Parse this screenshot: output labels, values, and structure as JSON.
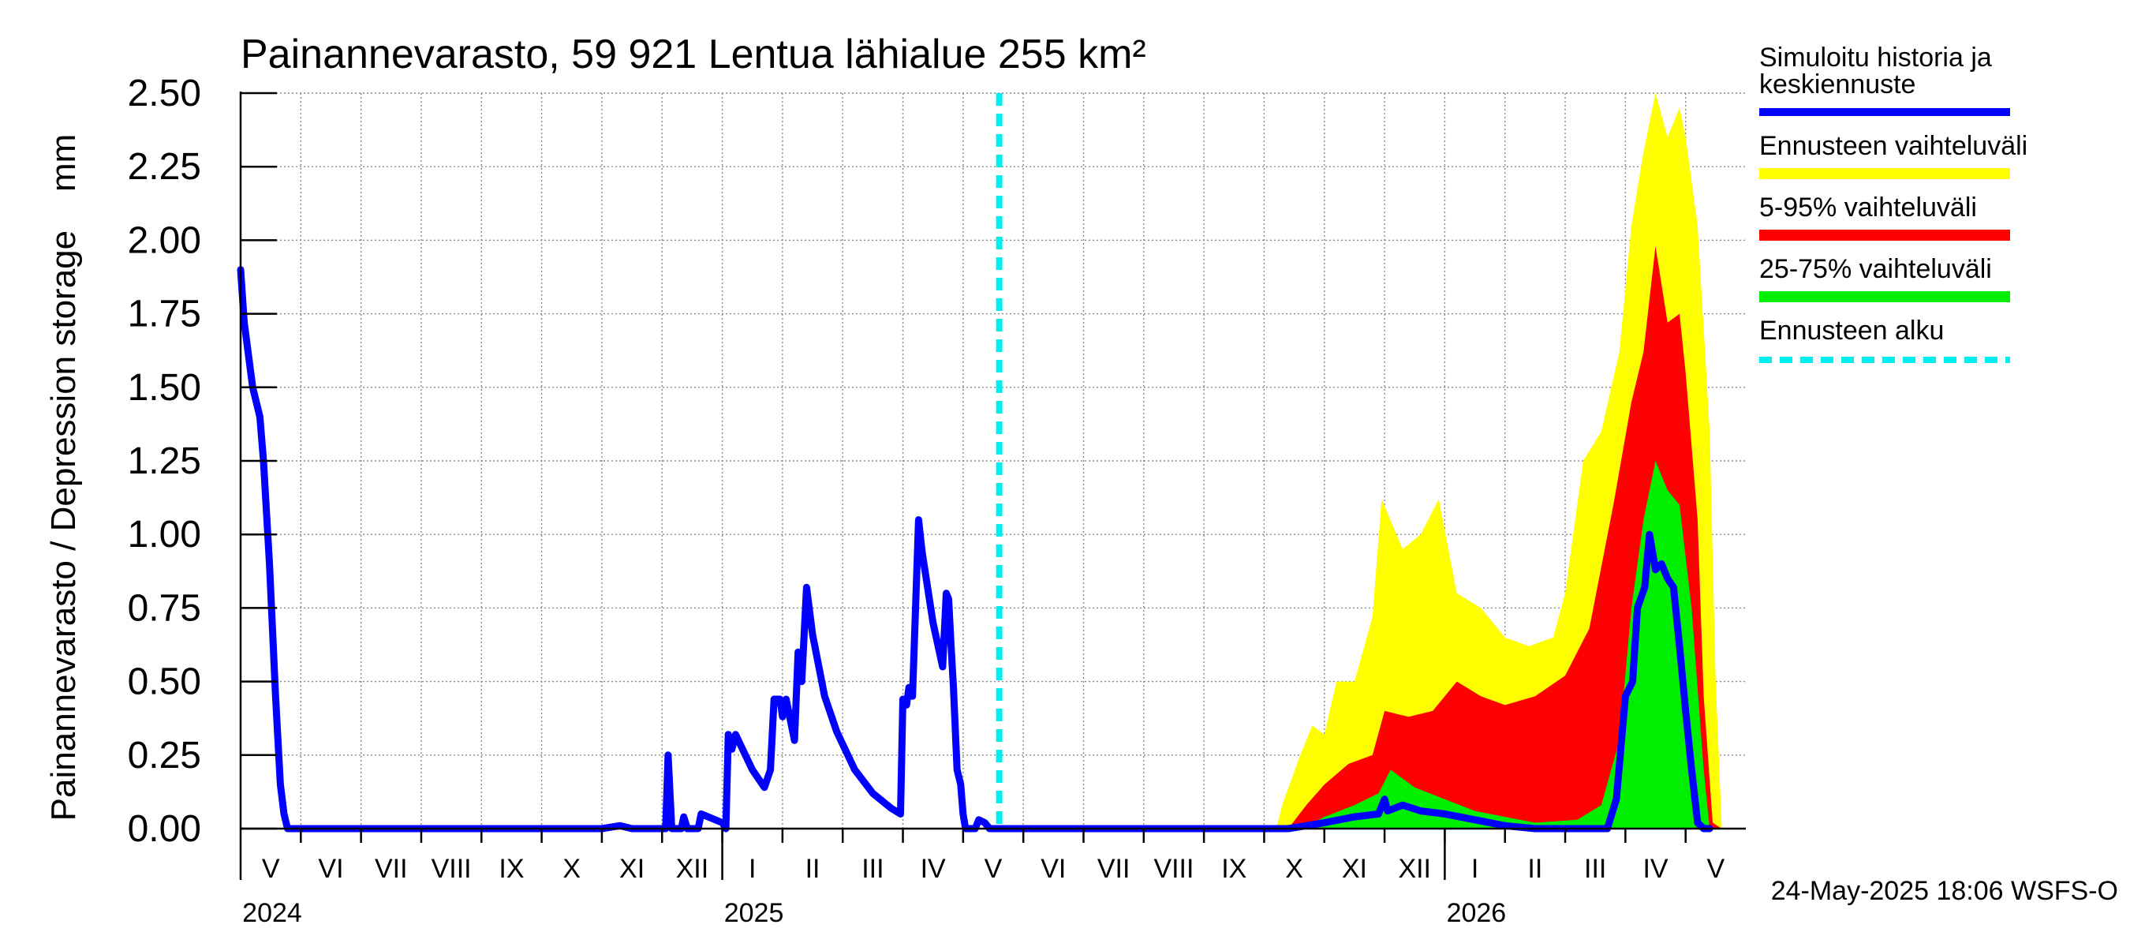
{
  "chart_data": {
    "type": "area",
    "title": "Painannevarasto, 59 921 Lentua lähialue 255 km²",
    "ylabel": "Painannevarasto / Depression storage    mm",
    "ylim": [
      0,
      2.5
    ],
    "y_ticks": [
      "0.00",
      "0.25",
      "0.50",
      "0.75",
      "1.00",
      "1.25",
      "1.50",
      "1.75",
      "2.00",
      "2.25",
      "2.50"
    ],
    "x_start": "2024-05-01",
    "x_end": "2026-06-01",
    "month_labels": [
      "V",
      "VI",
      "VII",
      "VIII",
      "IX",
      "X",
      "XI",
      "XII",
      "I",
      "II",
      "III",
      "IV",
      "V",
      "VI",
      "VII",
      "VIII",
      "IX",
      "X",
      "XI",
      "XII",
      "I",
      "II",
      "III",
      "IV",
      "V"
    ],
    "year_labels": [
      "2024",
      "2025",
      "2026"
    ],
    "forecast_start_month": 12.6,
    "legend": {
      "sim_label_line1": "Simuloitu historia ja",
      "sim_label_line2": "keskiennuste",
      "range_label": "Ennusteen vaihteluväli",
      "p5_95_label": "5-95% vaihteluväli",
      "p25_75_label": "25-75% vaihteluväli",
      "fc_start_label": "Ennusteen alku"
    },
    "colors": {
      "simulated": "#0000ff",
      "range": "#ffff00",
      "p5_95": "#ff0000",
      "p25_75": "#00ee00",
      "forecast_start": "#00eeee"
    },
    "series": [
      {
        "name": "Simuloitu historia ja keskiennuste",
        "points": [
          [
            0,
            1.9
          ],
          [
            0.06,
            1.72
          ],
          [
            0.2,
            1.5
          ],
          [
            0.32,
            1.4
          ],
          [
            0.38,
            1.25
          ],
          [
            0.48,
            0.9
          ],
          [
            0.58,
            0.45
          ],
          [
            0.66,
            0.15
          ],
          [
            0.72,
            0.05
          ],
          [
            0.78,
            0.0
          ],
          [
            6.0,
            0.0
          ],
          [
            6.3,
            0.01
          ],
          [
            6.5,
            0.0
          ],
          [
            7.06,
            0.0
          ],
          [
            7.1,
            0.25
          ],
          [
            7.16,
            0.0
          ],
          [
            7.32,
            0.0
          ],
          [
            7.36,
            0.04
          ],
          [
            7.42,
            0.0
          ],
          [
            7.6,
            0.0
          ],
          [
            7.65,
            0.05
          ],
          [
            8.0,
            0.02
          ],
          [
            8.06,
            0.0
          ],
          [
            8.1,
            0.32
          ],
          [
            8.16,
            0.27
          ],
          [
            8.22,
            0.32
          ],
          [
            8.5,
            0.2
          ],
          [
            8.7,
            0.14
          ],
          [
            8.8,
            0.2
          ],
          [
            8.86,
            0.44
          ],
          [
            8.96,
            0.44
          ],
          [
            9.0,
            0.38
          ],
          [
            9.06,
            0.44
          ],
          [
            9.2,
            0.3
          ],
          [
            9.26,
            0.6
          ],
          [
            9.32,
            0.5
          ],
          [
            9.4,
            0.82
          ],
          [
            9.5,
            0.66
          ],
          [
            9.7,
            0.45
          ],
          [
            9.9,
            0.33
          ],
          [
            10.2,
            0.2
          ],
          [
            10.5,
            0.12
          ],
          [
            10.8,
            0.07
          ],
          [
            10.96,
            0.05
          ],
          [
            11.0,
            0.44
          ],
          [
            11.06,
            0.42
          ],
          [
            11.1,
            0.48
          ],
          [
            11.16,
            0.45
          ],
          [
            11.26,
            1.05
          ],
          [
            11.32,
            0.94
          ],
          [
            11.5,
            0.7
          ],
          [
            11.66,
            0.55
          ],
          [
            11.72,
            0.8
          ],
          [
            11.76,
            0.78
          ],
          [
            11.8,
            0.62
          ],
          [
            11.84,
            0.48
          ],
          [
            11.9,
            0.2
          ],
          [
            11.96,
            0.15
          ],
          [
            12.0,
            0.05
          ],
          [
            12.04,
            0.0
          ],
          [
            12.2,
            0.0
          ],
          [
            12.26,
            0.03
          ],
          [
            12.36,
            0.02
          ],
          [
            12.44,
            0.0
          ],
          [
            17.4,
            0.0
          ],
          [
            18.0,
            0.02
          ],
          [
            18.5,
            0.04
          ],
          [
            18.9,
            0.05
          ],
          [
            19.0,
            0.1
          ],
          [
            19.05,
            0.06
          ],
          [
            19.3,
            0.08
          ],
          [
            19.6,
            0.06
          ],
          [
            20.0,
            0.05
          ],
          [
            20.5,
            0.03
          ],
          [
            21.0,
            0.01
          ],
          [
            21.5,
            0.0
          ],
          [
            22.7,
            0.0
          ],
          [
            22.85,
            0.1
          ],
          [
            23.0,
            0.45
          ],
          [
            23.12,
            0.5
          ],
          [
            23.2,
            0.75
          ],
          [
            23.32,
            0.82
          ],
          [
            23.4,
            1.0
          ],
          [
            23.5,
            0.88
          ],
          [
            23.6,
            0.9
          ],
          [
            23.7,
            0.85
          ],
          [
            23.8,
            0.82
          ],
          [
            23.9,
            0.62
          ],
          [
            24.0,
            0.4
          ],
          [
            24.1,
            0.2
          ],
          [
            24.2,
            0.02
          ],
          [
            24.3,
            0.0
          ],
          [
            24.4,
            0.0
          ]
        ]
      },
      {
        "name": "Ennusteen vaihteluväli",
        "points": [
          [
            12.6,
            0.0
          ],
          [
            17.2,
            0.0
          ],
          [
            17.3,
            0.08
          ],
          [
            17.6,
            0.25
          ],
          [
            17.8,
            0.35
          ],
          [
            18.0,
            0.32
          ],
          [
            18.2,
            0.5
          ],
          [
            18.5,
            0.5
          ],
          [
            18.8,
            0.72
          ],
          [
            18.95,
            1.12
          ],
          [
            19.3,
            0.95
          ],
          [
            19.6,
            1.0
          ],
          [
            19.9,
            1.12
          ],
          [
            20.2,
            0.8
          ],
          [
            20.6,
            0.75
          ],
          [
            21.0,
            0.65
          ],
          [
            21.4,
            0.62
          ],
          [
            21.8,
            0.65
          ],
          [
            22.0,
            0.8
          ],
          [
            22.3,
            1.25
          ],
          [
            22.6,
            1.35
          ],
          [
            22.9,
            1.62
          ],
          [
            23.1,
            2.05
          ],
          [
            23.3,
            2.3
          ],
          [
            23.5,
            2.5
          ],
          [
            23.7,
            2.35
          ],
          [
            23.9,
            2.45
          ],
          [
            24.0,
            2.35
          ],
          [
            24.2,
            2.05
          ],
          [
            24.4,
            1.35
          ],
          [
            24.5,
            0.5
          ],
          [
            24.6,
            0.0
          ]
        ]
      },
      {
        "name": "5-95% vaihteluväli",
        "points": [
          [
            12.6,
            0.0
          ],
          [
            17.4,
            0.0
          ],
          [
            17.7,
            0.08
          ],
          [
            18.0,
            0.15
          ],
          [
            18.4,
            0.22
          ],
          [
            18.8,
            0.25
          ],
          [
            19.0,
            0.4
          ],
          [
            19.4,
            0.38
          ],
          [
            19.8,
            0.4
          ],
          [
            20.2,
            0.5
          ],
          [
            20.6,
            0.45
          ],
          [
            21.0,
            0.42
          ],
          [
            21.5,
            0.45
          ],
          [
            22.0,
            0.52
          ],
          [
            22.4,
            0.68
          ],
          [
            22.8,
            1.1
          ],
          [
            23.1,
            1.45
          ],
          [
            23.3,
            1.62
          ],
          [
            23.5,
            1.98
          ],
          [
            23.7,
            1.72
          ],
          [
            23.9,
            1.75
          ],
          [
            24.0,
            1.55
          ],
          [
            24.2,
            1.05
          ],
          [
            24.3,
            0.45
          ],
          [
            24.45,
            0.02
          ],
          [
            24.6,
            0.0
          ]
        ]
      },
      {
        "name": "25-75% vaihteluväli",
        "points": [
          [
            12.6,
            0.0
          ],
          [
            17.6,
            0.0
          ],
          [
            18.0,
            0.04
          ],
          [
            18.5,
            0.08
          ],
          [
            18.9,
            0.12
          ],
          [
            19.1,
            0.2
          ],
          [
            19.5,
            0.14
          ],
          [
            20.0,
            0.1
          ],
          [
            20.5,
            0.06
          ],
          [
            21.0,
            0.04
          ],
          [
            21.5,
            0.02
          ],
          [
            22.2,
            0.03
          ],
          [
            22.6,
            0.08
          ],
          [
            22.9,
            0.3
          ],
          [
            23.1,
            0.75
          ],
          [
            23.3,
            1.05
          ],
          [
            23.5,
            1.25
          ],
          [
            23.7,
            1.15
          ],
          [
            23.9,
            1.1
          ],
          [
            24.1,
            0.75
          ],
          [
            24.3,
            0.2
          ],
          [
            24.4,
            0.0
          ]
        ]
      }
    ],
    "timestamp": "24-May-2025 18:06 WSFS-O"
  }
}
